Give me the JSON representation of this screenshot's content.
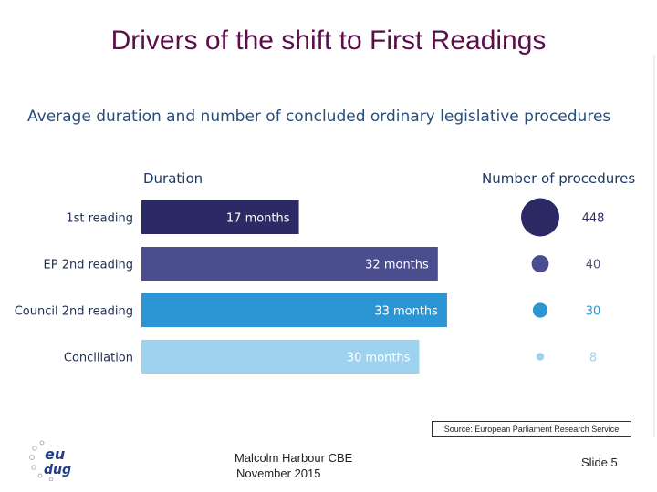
{
  "slide": {
    "title": "Drivers of the shift to First Readings",
    "source": "Source: European Parliament Research Service",
    "presenter": "Malcolm Harbour CBE",
    "date": "November 2015",
    "slide_number": "Slide 5",
    "logo_text_top": "eu",
    "logo_text_bottom": "dug"
  },
  "chart_data": {
    "type": "bar",
    "title": "Average duration and number of concluded ordinary legislative procedures",
    "duration_header": "Duration",
    "count_header": "Number of procedures",
    "categories": [
      "1st reading",
      "EP 2nd reading",
      "Council 2nd reading",
      "Conciliation"
    ],
    "series": [
      {
        "name": "Duration",
        "values": [
          17,
          32,
          33,
          30
        ],
        "labels": [
          "17 months",
          "32 months",
          "33 months",
          "30 months"
        ]
      },
      {
        "name": "Number of procedures",
        "values": [
          448,
          40,
          30,
          8
        ],
        "labels": [
          "448",
          "40",
          "30",
          "8"
        ]
      }
    ],
    "colors": [
      "#2b2a64",
      "#4a4d8e",
      "#2c95d4",
      "#9fd2ef"
    ],
    "label_colors": [
      "#2b2a64",
      "#4a4d8e",
      "#2c95d4",
      "#9fd2ef"
    ]
  }
}
